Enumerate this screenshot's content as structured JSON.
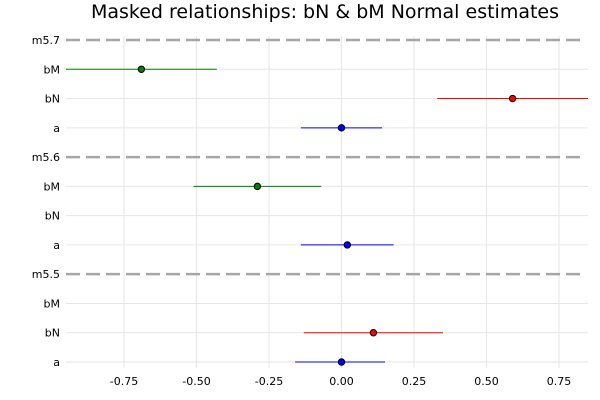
{
  "chart_data": {
    "type": "scatter",
    "title": "Masked relationships: bN & bM Normal estimates",
    "xlabel": "",
    "ylabel": "",
    "xlim": [
      -0.95,
      0.85
    ],
    "x_ticks": [
      {
        "value": -0.75,
        "label": "-0.75"
      },
      {
        "value": -0.5,
        "label": "-0.50"
      },
      {
        "value": -0.25,
        "label": "-0.25"
      },
      {
        "value": 0.0,
        "label": "0.00"
      },
      {
        "value": 0.25,
        "label": "0.25"
      },
      {
        "value": 0.5,
        "label": "0.50"
      },
      {
        "value": 0.75,
        "label": "0.75"
      }
    ],
    "rows": [
      "a",
      "bN",
      "bM",
      "m5.5",
      "a",
      "bN",
      "bM",
      "m5.6",
      "a",
      "bN",
      "bM",
      "m5.7"
    ],
    "separator_rows": [
      3,
      7,
      11
    ],
    "grid": true,
    "legend": "none",
    "colors": {
      "a": "#0000ff",
      "bN": "#ff0000",
      "bM": "#008000",
      "separator": "#a6a6a6"
    },
    "series": [
      {
        "model": "m5.5",
        "param": "a",
        "row": 0,
        "mean": 0.0,
        "lower": -0.16,
        "upper": 0.15
      },
      {
        "model": "m5.5",
        "param": "bN",
        "row": 1,
        "mean": 0.11,
        "lower": -0.13,
        "upper": 0.35
      },
      {
        "model": "m5.6",
        "param": "a",
        "row": 4,
        "mean": 0.02,
        "lower": -0.14,
        "upper": 0.18
      },
      {
        "model": "m5.6",
        "param": "bM",
        "row": 6,
        "mean": -0.29,
        "lower": -0.51,
        "upper": -0.07
      },
      {
        "model": "m5.7",
        "param": "a",
        "row": 8,
        "mean": 0.0,
        "lower": -0.14,
        "upper": 0.14
      },
      {
        "model": "m5.7",
        "param": "bN",
        "row": 9,
        "mean": 0.59,
        "lower": 0.33,
        "upper": 0.86
      },
      {
        "model": "m5.7",
        "param": "bM",
        "row": 10,
        "mean": -0.69,
        "lower": -0.95,
        "upper": -0.43
      }
    ]
  }
}
